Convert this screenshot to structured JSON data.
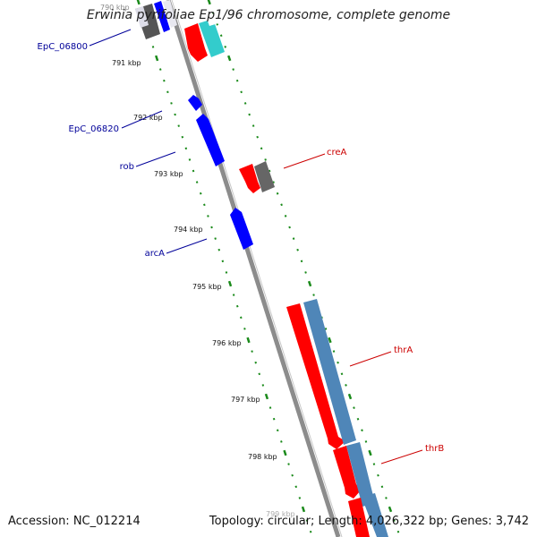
{
  "title": "Erwinia pyrifoliae Ep1/96 chromosome, complete genome",
  "footer": {
    "accession": "Accession: NC_012214",
    "summary": "Topology: circular; Length: 4,026,322 bp; Genes: 3,742"
  },
  "colors": {
    "background": "#ffffff",
    "backbone": "#8c8c8c",
    "forward_gene": "#ff0000",
    "reverse_gene": "#0000ff",
    "grey_feature": "#666666",
    "cyan_feature": "#33cccc",
    "steelblue_feature": "#4f86b8",
    "tick": "#1a8a1a",
    "left_label": "#000099",
    "right_label": "#cc0000"
  },
  "ticks": [
    {
      "label": "790 kbp"
    },
    {
      "label": "791 kbp"
    },
    {
      "label": "792 kbp"
    },
    {
      "label": "793 kbp"
    },
    {
      "label": "794 kbp"
    },
    {
      "label": "795 kbp"
    },
    {
      "label": "796 kbp"
    },
    {
      "label": "797 kbp"
    },
    {
      "label": "798 kbp"
    },
    {
      "label": "799 kbp"
    }
  ],
  "gene_labels": {
    "left": [
      "EpC_06800",
      "EpC_06820",
      "rob",
      "arcA"
    ],
    "right": [
      "creA",
      "thrA",
      "thrB"
    ]
  }
}
